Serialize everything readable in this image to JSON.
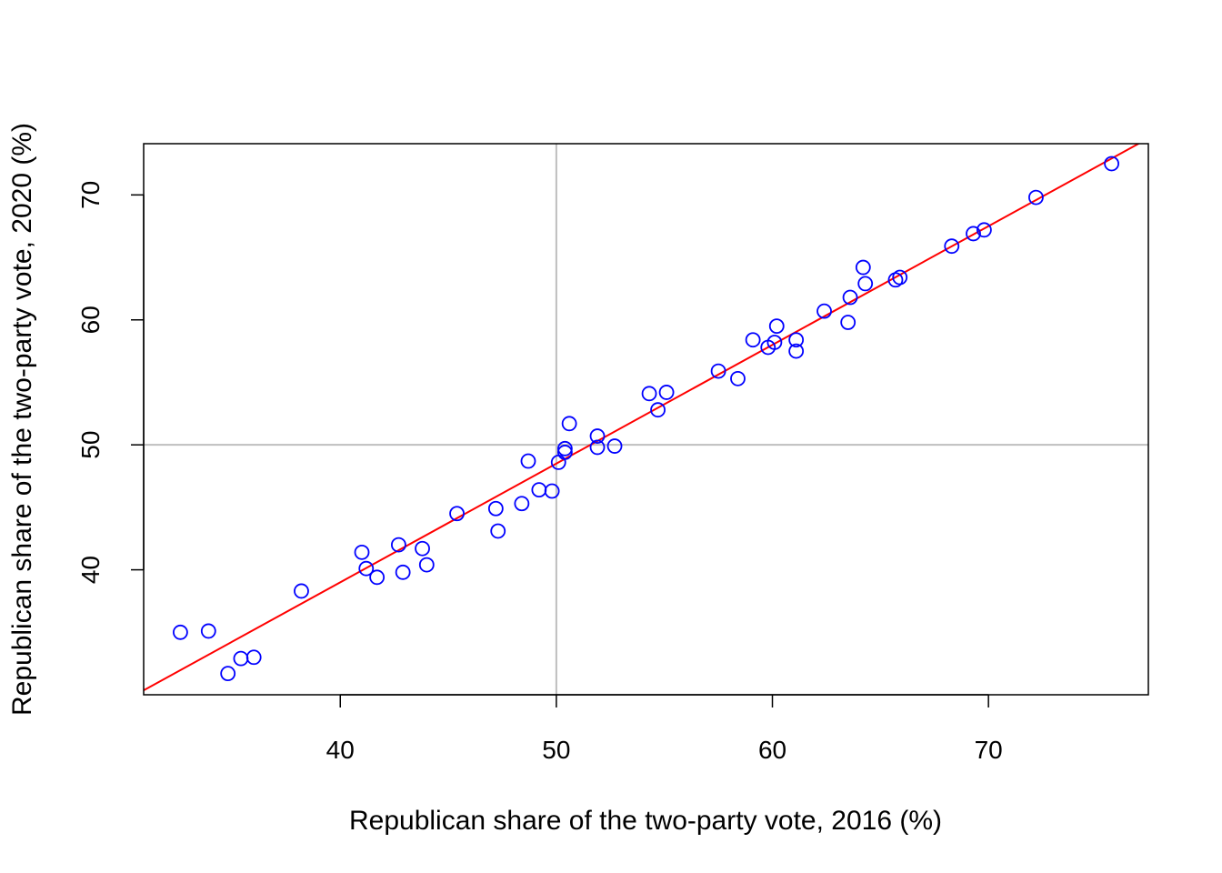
{
  "chart_data": {
    "type": "scatter",
    "xlabel": "Republican share of the two-party vote, 2016 (%)",
    "ylabel": "Republican share of the two-party vote, 2020 (%)",
    "xlim": [
      30.9,
      77.4
    ],
    "ylim": [
      30.0,
      74.1
    ],
    "xticks": [
      "40",
      "50",
      "60",
      "70"
    ],
    "yticks": [
      "40",
      "50",
      "60",
      "70"
    ],
    "grid": false,
    "reference_lines": {
      "x": 50,
      "y": 50,
      "color": "#bebebe"
    },
    "fit_line": {
      "intercept": 1.0,
      "slope": 0.95,
      "color": "#ff0000"
    },
    "point_color": "#0000ff",
    "points": [
      [
        32.6,
        35.0
      ],
      [
        33.9,
        35.1
      ],
      [
        34.8,
        31.7
      ],
      [
        35.4,
        32.9
      ],
      [
        36.0,
        33.0
      ],
      [
        38.2,
        38.3
      ],
      [
        41.0,
        41.4
      ],
      [
        41.2,
        40.1
      ],
      [
        41.7,
        39.4
      ],
      [
        42.7,
        42.0
      ],
      [
        42.9,
        39.8
      ],
      [
        43.8,
        41.7
      ],
      [
        44.0,
        40.4
      ],
      [
        45.4,
        44.5
      ],
      [
        47.2,
        44.9
      ],
      [
        47.3,
        43.1
      ],
      [
        48.4,
        45.3
      ],
      [
        48.7,
        48.7
      ],
      [
        49.2,
        46.4
      ],
      [
        49.8,
        46.3
      ],
      [
        50.1,
        48.6
      ],
      [
        50.4,
        49.4
      ],
      [
        50.4,
        49.7
      ],
      [
        50.6,
        51.7
      ],
      [
        51.9,
        50.7
      ],
      [
        51.9,
        49.8
      ],
      [
        52.7,
        49.9
      ],
      [
        54.3,
        54.1
      ],
      [
        54.7,
        52.8
      ],
      [
        55.1,
        54.2
      ],
      [
        57.5,
        55.9
      ],
      [
        58.4,
        55.3
      ],
      [
        59.1,
        58.4
      ],
      [
        59.8,
        57.8
      ],
      [
        60.1,
        58.2
      ],
      [
        60.2,
        59.5
      ],
      [
        61.1,
        58.4
      ],
      [
        61.1,
        57.5
      ],
      [
        62.4,
        60.7
      ],
      [
        63.5,
        59.8
      ],
      [
        63.6,
        61.8
      ],
      [
        64.2,
        64.2
      ],
      [
        64.3,
        62.9
      ],
      [
        65.7,
        63.2
      ],
      [
        65.9,
        63.4
      ],
      [
        68.3,
        65.9
      ],
      [
        69.3,
        66.9
      ],
      [
        69.8,
        67.2
      ],
      [
        72.2,
        69.8
      ],
      [
        75.7,
        72.5
      ]
    ]
  }
}
